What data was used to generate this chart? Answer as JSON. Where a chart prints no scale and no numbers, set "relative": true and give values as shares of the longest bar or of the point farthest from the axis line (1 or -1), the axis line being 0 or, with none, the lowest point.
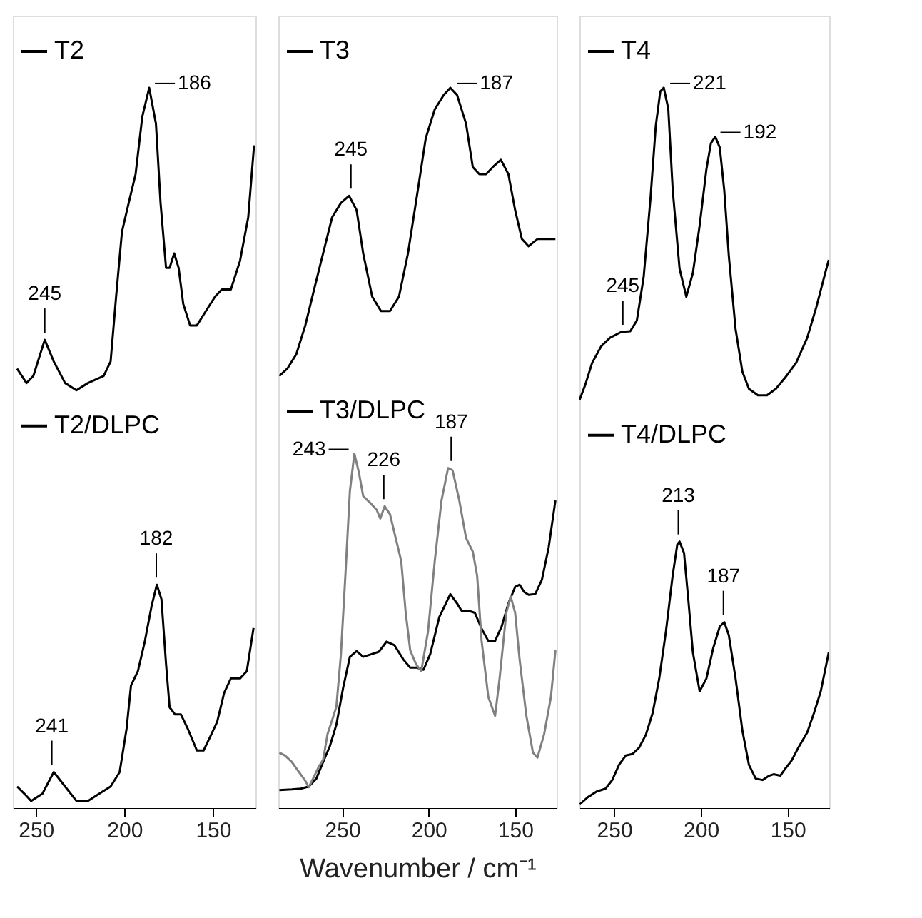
{
  "chart_data": [
    {
      "type": "line",
      "relative": true,
      "legend": "top left",
      "xlim": [
        263,
        126
      ],
      "xticks": [
        250,
        200,
        150
      ],
      "series": [
        {
          "name": "T2",
          "color": "#000000",
          "x": [
            260.6,
            255.3,
            251.4,
            245,
            239.9,
            233.5,
            227.1,
            220.6,
            211.7,
            207.8,
            204.7,
            201.4,
            197.6,
            193.7,
            189.9,
            186.0,
            182.2,
            179.6,
            176.5,
            174.5,
            171.9,
            169.4,
            166.8,
            162.9,
            159.1,
            154.0,
            148.8,
            145.0,
            139.9,
            134.7,
            130.1,
            126.8
          ],
          "values": [
            0.61,
            0.59,
            0.6,
            0.65,
            0.62,
            0.59,
            0.58,
            0.59,
            0.6,
            0.62,
            0.71,
            0.8,
            0.84,
            0.88,
            0.96,
            1.0,
            0.95,
            0.84,
            0.75,
            0.75,
            0.77,
            0.75,
            0.7,
            0.67,
            0.67,
            0.69,
            0.71,
            0.72,
            0.72,
            0.76,
            0.82,
            0.92
          ]
        },
        {
          "name": "T2/DLPC",
          "color": "#000000",
          "x": [
            260.6,
            256.5,
            252.7,
            246.3,
            239.9,
            233.5,
            227.1,
            220.6,
            214.2,
            207.8,
            202.7,
            198.8,
            196.3,
            192.4,
            188.6,
            184.7,
            181.7,
            179.1,
            176.5,
            174.5,
            171.4,
            168.1,
            164.2,
            159.1,
            155.3,
            151.4,
            147.6,
            143.7,
            139.9,
            134.7,
            130.9,
            127.1
          ],
          "values": [
            0.03,
            0.02,
            0.01,
            0.02,
            0.05,
            0.03,
            0.01,
            0.01,
            0.02,
            0.03,
            0.05,
            0.11,
            0.17,
            0.19,
            0.23,
            0.28,
            0.31,
            0.29,
            0.2,
            0.14,
            0.13,
            0.13,
            0.11,
            0.08,
            0.08,
            0.1,
            0.12,
            0.16,
            0.18,
            0.18,
            0.19,
            0.25
          ]
        }
      ],
      "annotations": [
        {
          "text": "245",
          "x": 245,
          "y": 0.65
        },
        {
          "text": "186",
          "x": 186,
          "y": 1.0
        },
        {
          "text": "241",
          "x": 241,
          "y": 0.05
        },
        {
          "text": "182",
          "x": 182,
          "y": 0.31
        }
      ]
    },
    {
      "type": "line",
      "relative": true,
      "legend": "top left",
      "xlim": [
        287,
        126
      ],
      "xticks": [
        250,
        200,
        150
      ],
      "xlabel": "Wavenumber / cm⁻¹",
      "series": [
        {
          "name": "T3",
          "color": "#000000",
          "x": [
            286.4,
            281.8,
            276.6,
            271.4,
            266.3,
            261.1,
            255.9,
            250.8,
            246.1,
            241.7,
            237.9,
            232.7,
            227.6,
            222.4,
            217.2,
            212.0,
            206.8,
            201.7,
            196.5,
            191.3,
            187.5,
            183.6,
            178.4,
            174.5,
            170.7,
            166.8,
            162.9,
            158.3,
            153.9,
            150.0,
            146.1,
            142.2,
            137.1,
            133.2,
            129.8,
            126.7
          ],
          "values": [
            0.6,
            0.61,
            0.63,
            0.67,
            0.72,
            0.77,
            0.82,
            0.84,
            0.85,
            0.83,
            0.77,
            0.71,
            0.69,
            0.69,
            0.71,
            0.77,
            0.85,
            0.93,
            0.97,
            0.99,
            1.0,
            0.99,
            0.95,
            0.89,
            0.88,
            0.88,
            0.89,
            0.9,
            0.88,
            0.83,
            0.79,
            0.78,
            0.79,
            0.79,
            0.79,
            0.79
          ]
        },
        {
          "name": "T3/DLPC",
          "color": "#000000",
          "x": [
            286.4,
            279.2,
            274.0,
            269.4,
            265.0,
            261.1,
            257.2,
            253.4,
            249.5,
            245.6,
            241.7,
            237.9,
            232.7,
            228.8,
            224.4,
            219.8,
            214.6,
            210.7,
            206.8,
            203.0,
            199.1,
            193.9,
            187.5,
            183.6,
            181.0,
            177.1,
            173.3,
            169.4,
            165.5,
            161.6,
            157.8,
            153.9,
            150.0,
            147.4,
            144.8,
            142.2,
            138.4,
            134.5,
            130.6,
            126.7
          ],
          "values": [
            0.025,
            0.026,
            0.027,
            0.03,
            0.041,
            0.064,
            0.086,
            0.116,
            0.167,
            0.21,
            0.218,
            0.21,
            0.214,
            0.217,
            0.231,
            0.226,
            0.206,
            0.195,
            0.195,
            0.192,
            0.214,
            0.265,
            0.297,
            0.284,
            0.274,
            0.274,
            0.271,
            0.249,
            0.232,
            0.232,
            0.252,
            0.284,
            0.307,
            0.31,
            0.3,
            0.296,
            0.297,
            0.317,
            0.362,
            0.427
          ]
        },
        {
          "color": "#808080",
          "x": [
            286.4,
            283.1,
            279.2,
            275.3,
            271.4,
            269.4,
            266.3,
            263.7,
            261.1,
            258.5,
            255.9,
            253.4,
            250.8,
            248.2,
            245.6,
            243.0,
            240.4,
            237.9,
            234.0,
            230.1,
            228.0,
            225.5,
            222.4,
            219.8,
            215.9,
            213.3,
            210.7,
            207.4,
            204.3,
            200.4,
            196.5,
            192.6,
            188.8,
            186.2,
            182.3,
            178.4,
            174.5,
            172.0,
            169.4,
            165.5,
            161.6,
            159.0,
            155.1,
            152.6,
            150.0,
            147.4,
            143.5,
            139.7,
            137.1,
            133.2,
            129.3,
            126.7
          ],
          "values": [
            0.077,
            0.073,
            0.064,
            0.051,
            0.038,
            0.029,
            0.044,
            0.057,
            0.067,
            0.103,
            0.122,
            0.141,
            0.213,
            0.323,
            0.44,
            0.492,
            0.466,
            0.433,
            0.424,
            0.414,
            0.402,
            0.419,
            0.408,
            0.382,
            0.343,
            0.271,
            0.219,
            0.2,
            0.19,
            0.245,
            0.343,
            0.427,
            0.472,
            0.469,
            0.427,
            0.375,
            0.356,
            0.323,
            0.232,
            0.154,
            0.128,
            0.18,
            0.271,
            0.294,
            0.271,
            0.206,
            0.128,
            0.077,
            0.07,
            0.103,
            0.154,
            0.219
          ]
        }
      ],
      "annotations": [
        {
          "text": "245",
          "x": 245,
          "y": 0.85
        },
        {
          "text": "187",
          "x": 187,
          "y": 1.0
        },
        {
          "text": "243",
          "x": 243,
          "y": 0.492
        },
        {
          "text": "226",
          "x": 226,
          "y": 0.419
        },
        {
          "text": "187",
          "x": 187,
          "y": 0.472
        }
      ]
    },
    {
      "type": "line",
      "relative": true,
      "legend": "top left",
      "xlim": [
        270,
        126
      ],
      "xticks": [
        250,
        200,
        150
      ],
      "series": [
        {
          "name": "T4",
          "color": "#000000",
          "x": [
            269.9,
            266.6,
            262.7,
            257.5,
            252.4,
            245.9,
            240.7,
            236.9,
            233.0,
            229.1,
            226.0,
            223.4,
            221.4,
            218.8,
            216.2,
            212.3,
            208.4,
            204.6,
            200.7,
            196.8,
            194.2,
            191.7,
            189.1,
            186.5,
            183.9,
            180.0,
            176.1,
            172.3,
            167.1,
            161.9,
            156.8,
            151.6,
            145.1,
            138.7,
            133.5,
            128.3,
            126.3
          ],
          "values": [
            0.567,
            0.588,
            0.618,
            0.641,
            0.653,
            0.661,
            0.662,
            0.677,
            0.737,
            0.845,
            0.947,
            0.995,
            1.0,
            0.971,
            0.857,
            0.749,
            0.71,
            0.743,
            0.809,
            0.887,
            0.923,
            0.932,
            0.917,
            0.857,
            0.767,
            0.665,
            0.606,
            0.582,
            0.573,
            0.573,
            0.582,
            0.597,
            0.618,
            0.653,
            0.695,
            0.743,
            0.761
          ]
        },
        {
          "name": "T4/DLPC",
          "color": "#000000",
          "x": [
            269.9,
            265.3,
            260.1,
            255.0,
            251.1,
            247.2,
            243.3,
            239.5,
            235.6,
            231.7,
            227.8,
            224.0,
            220.1,
            216.2,
            213.6,
            212.3,
            209.7,
            207.2,
            204.6,
            200.7,
            196.8,
            192.9,
            189.1,
            186.5,
            183.9,
            180.0,
            176.1,
            172.3,
            168.4,
            164.5,
            160.6,
            158.1,
            154.2,
            151.6,
            147.7,
            143.8,
            138.7,
            134.8,
            130.9,
            126.3
          ],
          "values": [
            0.005,
            0.015,
            0.023,
            0.027,
            0.039,
            0.06,
            0.073,
            0.075,
            0.084,
            0.102,
            0.132,
            0.18,
            0.246,
            0.324,
            0.366,
            0.37,
            0.354,
            0.288,
            0.216,
            0.162,
            0.18,
            0.222,
            0.252,
            0.258,
            0.24,
            0.18,
            0.108,
            0.06,
            0.041,
            0.039,
            0.045,
            0.047,
            0.045,
            0.054,
            0.066,
            0.084,
            0.105,
            0.132,
            0.162,
            0.216
          ]
        }
      ],
      "annotations": [
        {
          "text": "245",
          "x": 245,
          "y": 0.661
        },
        {
          "text": "221",
          "x": 221,
          "y": 1.0
        },
        {
          "text": "192",
          "x": 192,
          "y": 0.932
        },
        {
          "text": "213",
          "x": 213,
          "y": 0.37
        },
        {
          "text": "187",
          "x": 187,
          "y": 0.258
        }
      ]
    }
  ]
}
